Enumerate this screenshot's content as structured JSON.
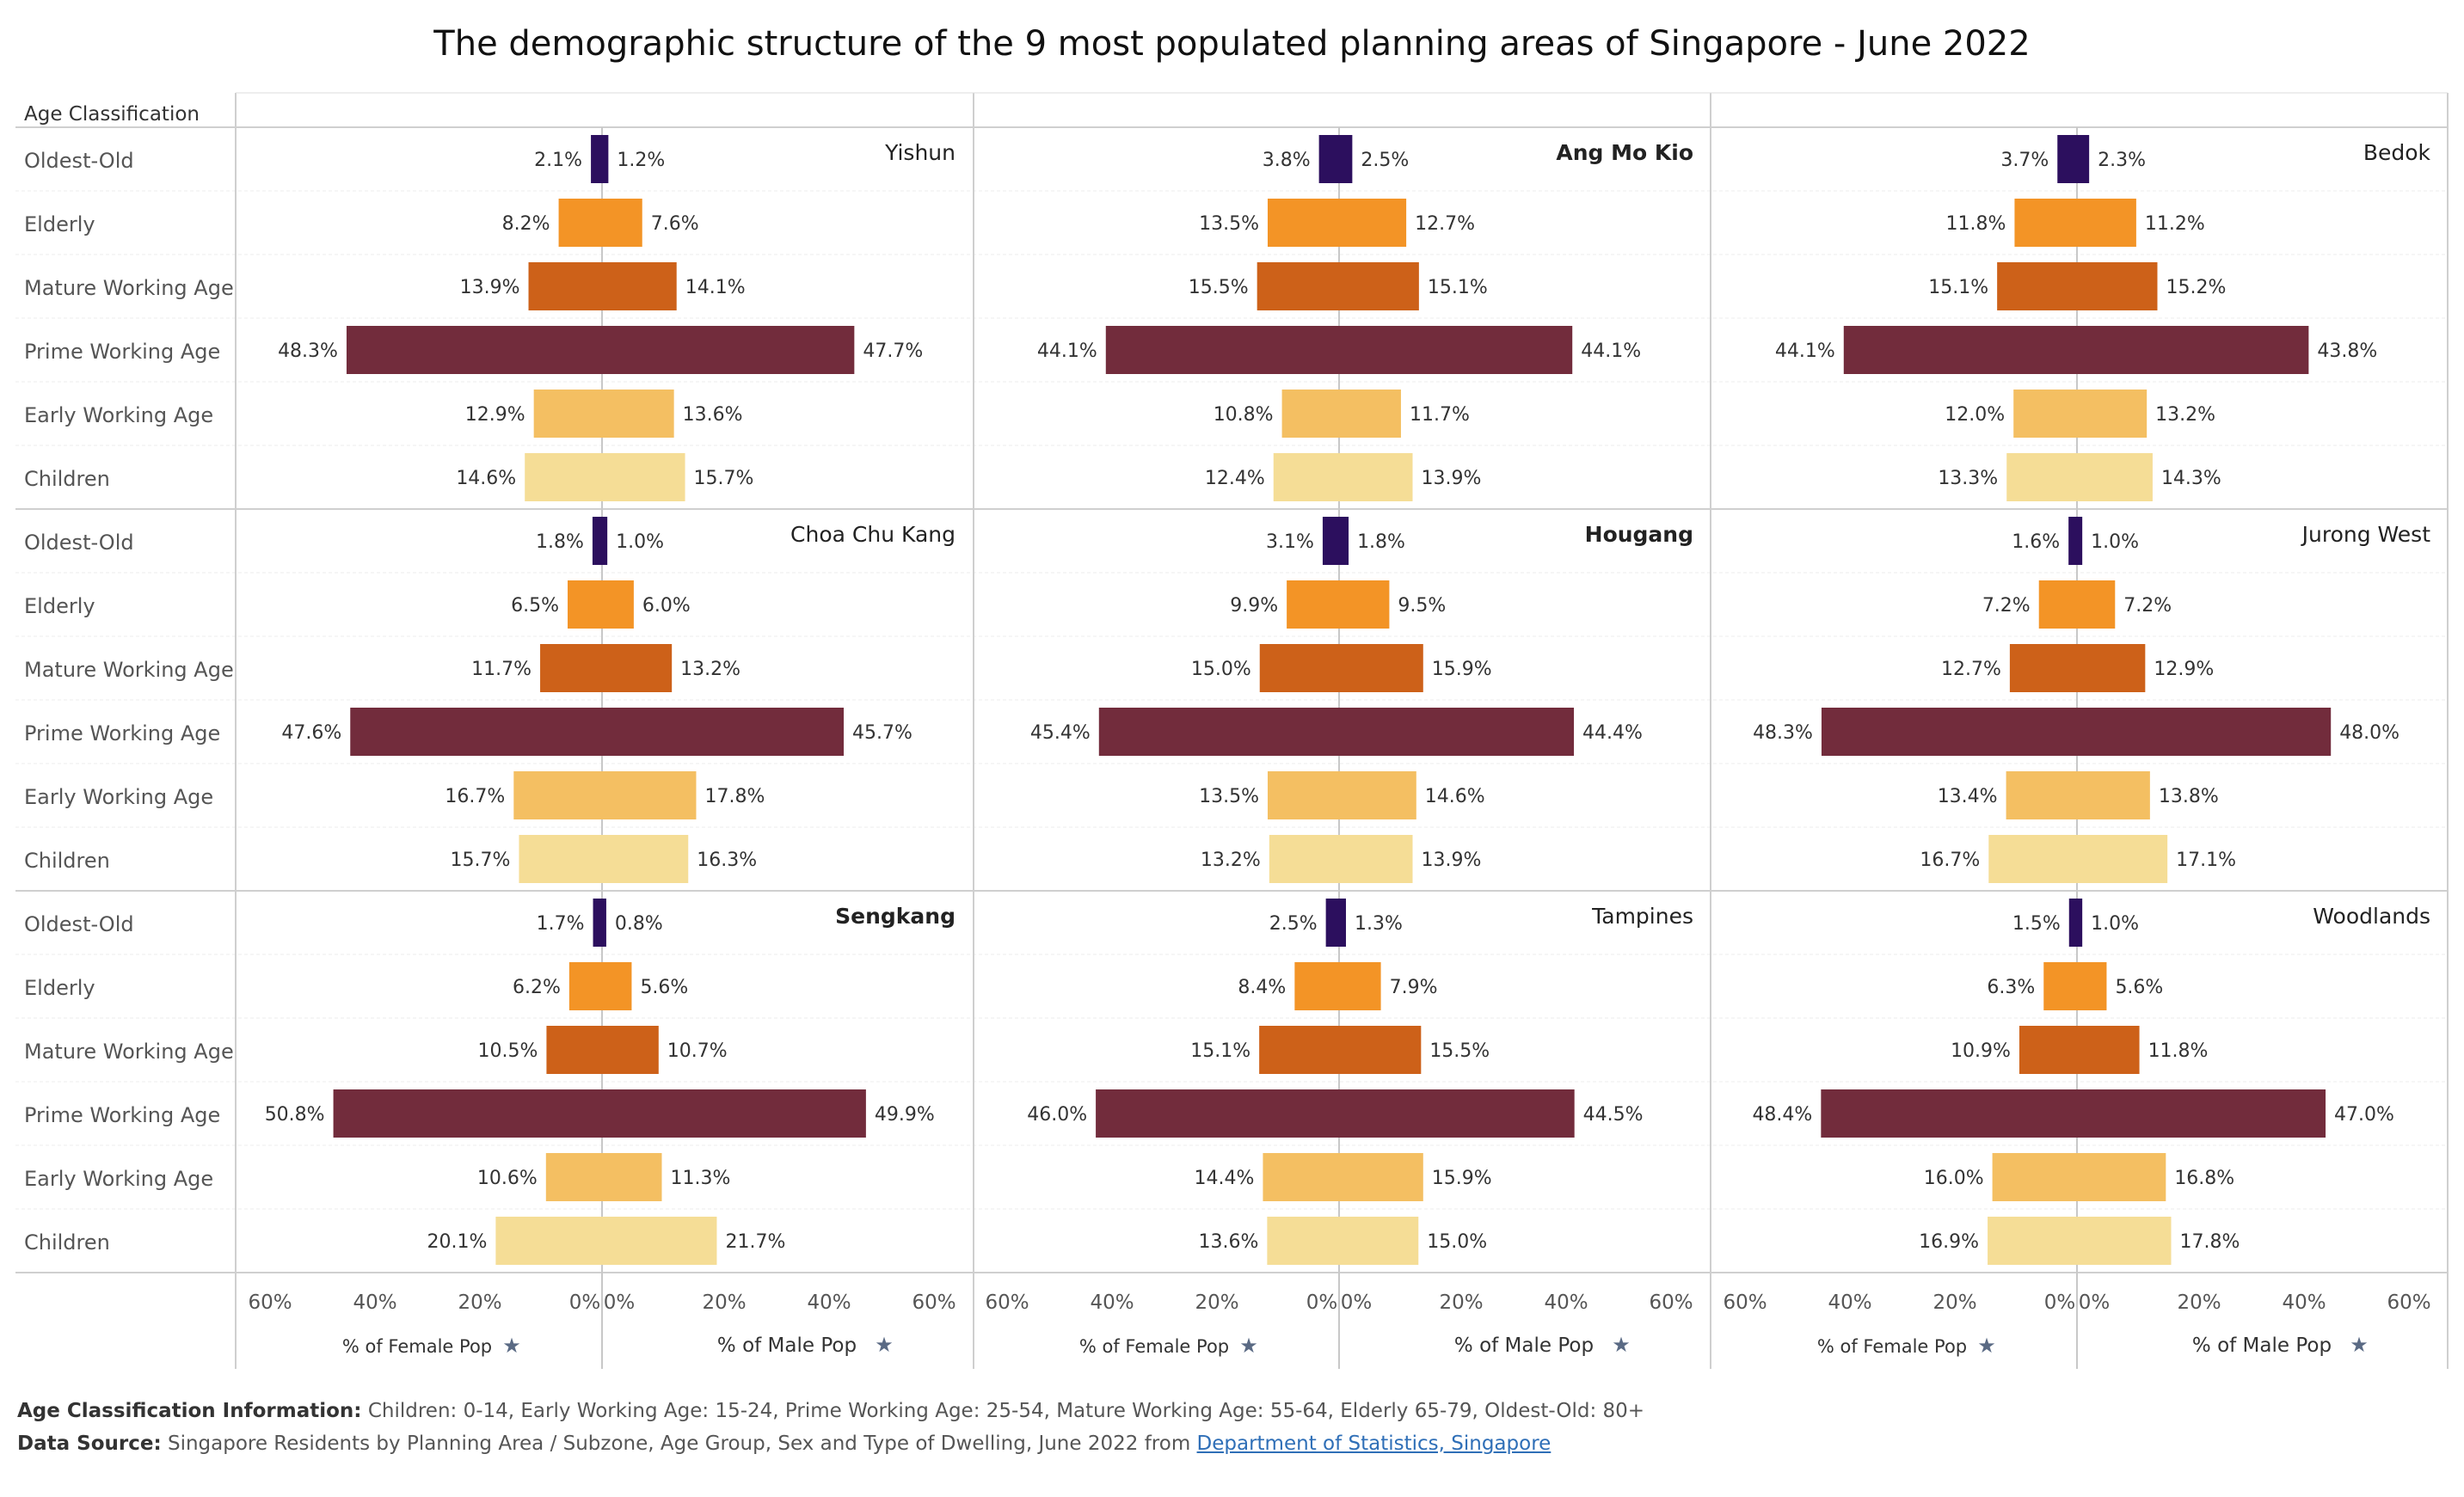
{
  "title": "The demographic structure of the 9 most populated planning areas of Singapore - June 2022",
  "row_header": "Age Classification",
  "colors": {
    "Oldest-Old": "#2c0f5e",
    "Elderly": "#f39426",
    "Mature Working Age": "#cd6119",
    "Prime Working Age": "#722c3c",
    "Early Working Age": "#f4bf62",
    "Children": "#f5dd96"
  },
  "chart_data": {
    "type": "bar",
    "orientation": "horizontal-mirrored",
    "categories": [
      "Oldest-Old",
      "Elderly",
      "Mature Working Age",
      "Prime Working Age",
      "Early Working Age",
      "Children"
    ],
    "xlim": [
      -60,
      60
    ],
    "ticks_left": [
      "60%",
      "40%",
      "20%",
      "0%"
    ],
    "ticks_right": [
      "0%",
      "20%",
      "40%",
      "60%"
    ],
    "xlabel_left": "% of Female Pop",
    "xlabel_right": "% of Male Pop",
    "areas": [
      {
        "name": "Yishun",
        "female": [
          2.1,
          8.2,
          13.9,
          48.3,
          12.9,
          14.6
        ],
        "male": [
          1.2,
          7.6,
          14.1,
          47.7,
          13.6,
          15.7
        ]
      },
      {
        "name": "Ang Mo Kio",
        "female": [
          3.8,
          13.5,
          15.5,
          44.1,
          10.8,
          12.4
        ],
        "male": [
          2.5,
          12.7,
          15.1,
          44.1,
          11.7,
          13.9
        ]
      },
      {
        "name": "Bedok",
        "female": [
          3.7,
          11.8,
          15.1,
          44.1,
          12.0,
          13.3
        ],
        "male": [
          2.3,
          11.2,
          15.2,
          43.8,
          13.2,
          14.3
        ]
      },
      {
        "name": "Choa Chu Kang",
        "female": [
          1.8,
          6.5,
          11.7,
          47.6,
          16.7,
          15.7
        ],
        "male": [
          1.0,
          6.0,
          13.2,
          45.7,
          17.8,
          16.3
        ]
      },
      {
        "name": "Hougang",
        "female": [
          3.1,
          9.9,
          15.0,
          45.4,
          13.5,
          13.2
        ],
        "male": [
          1.8,
          9.5,
          15.9,
          44.4,
          14.6,
          13.9
        ]
      },
      {
        "name": "Jurong West",
        "female": [
          1.6,
          7.2,
          12.7,
          48.3,
          13.4,
          16.7
        ],
        "male": [
          1.0,
          7.2,
          12.9,
          48.0,
          13.8,
          17.1
        ]
      },
      {
        "name": "Sengkang",
        "female": [
          1.7,
          6.2,
          10.5,
          50.8,
          10.6,
          20.1
        ],
        "male": [
          0.8,
          5.6,
          10.7,
          49.9,
          11.3,
          21.7
        ]
      },
      {
        "name": "Tampines",
        "female": [
          2.5,
          8.4,
          15.1,
          46.0,
          14.4,
          13.6
        ],
        "male": [
          1.3,
          7.9,
          15.5,
          44.5,
          15.9,
          15.0
        ]
      },
      {
        "name": "Woodlands",
        "female": [
          1.5,
          6.3,
          10.9,
          48.4,
          16.0,
          16.9
        ],
        "male": [
          1.0,
          5.6,
          11.8,
          47.0,
          16.8,
          17.8
        ]
      }
    ]
  },
  "footer": {
    "info_label": "Age Classification Information:",
    "info_text": " Children: 0-14, Early Working Age: 15-24, Prime Working Age: 25-54, Mature Working Age: 55-64, Elderly 65-79, Oldest-Old: 80+",
    "source_label": "Data Source:",
    "source_text": " Singapore Residents by Planning Area / Subzone, Age Group, Sex and Type of Dwelling, June 2022 from ",
    "source_link": "Department of Statistics, Singapore"
  }
}
